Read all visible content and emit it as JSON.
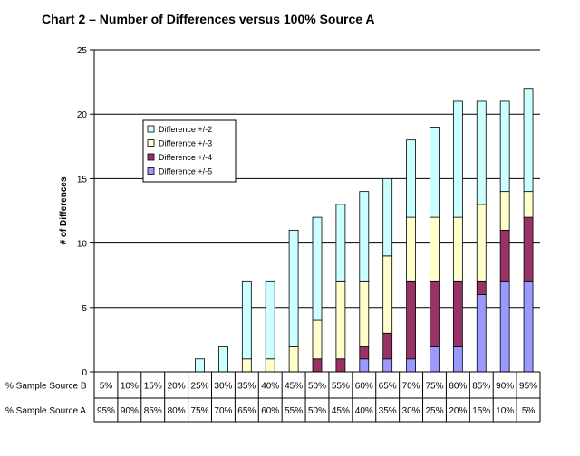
{
  "chart_data": {
    "type": "bar",
    "stacked": true,
    "title": "Chart 2 – Number of Differences versus 100% Source A",
    "ylabel": "# of Differences",
    "xlabel": "",
    "ylim": [
      0,
      25
    ],
    "yticks": [
      0,
      5,
      10,
      15,
      20,
      25
    ],
    "grid": true,
    "legend_position": "top-left",
    "row_labels": [
      "% Sample Source B",
      "% Sample Source A"
    ],
    "categories": [
      "5%",
      "10%",
      "15%",
      "20%",
      "25%",
      "30%",
      "35%",
      "40%",
      "45%",
      "50%",
      "55%",
      "60%",
      "65%",
      "70%",
      "75%",
      "80%",
      "85%",
      "90%",
      "95%"
    ],
    "source_a": [
      "95%",
      "90%",
      "85%",
      "80%",
      "75%",
      "70%",
      "65%",
      "60%",
      "55%",
      "50%",
      "45%",
      "40%",
      "35%",
      "30%",
      "25%",
      "20%",
      "15%",
      "10%",
      "5%"
    ],
    "series": [
      {
        "name": "Difference +/-5",
        "color": "#9999ff",
        "values": [
          0,
          0,
          0,
          0,
          0,
          0,
          0,
          0,
          0,
          0,
          0,
          1,
          1,
          1,
          2,
          2,
          6,
          7,
          7
        ]
      },
      {
        "name": "Difference +/-4",
        "color": "#993366",
        "values": [
          0,
          0,
          0,
          0,
          0,
          0,
          0,
          0,
          0,
          1,
          1,
          1,
          2,
          6,
          5,
          5,
          1,
          4,
          5
        ]
      },
      {
        "name": "Difference +/-3",
        "color": "#ffffcc",
        "values": [
          0,
          0,
          0,
          0,
          0,
          0,
          1,
          1,
          2,
          3,
          6,
          5,
          6,
          5,
          5,
          5,
          6,
          3,
          2
        ]
      },
      {
        "name": "Difference +/-2",
        "color": "#ccffff",
        "values": [
          0,
          0,
          0,
          0,
          1,
          2,
          6,
          6,
          9,
          8,
          6,
          7,
          6,
          6,
          7,
          9,
          8,
          7,
          8
        ]
      }
    ],
    "legend_order": [
      "Difference +/-2",
      "Difference +/-3",
      "Difference +/-4",
      "Difference +/-5"
    ]
  }
}
